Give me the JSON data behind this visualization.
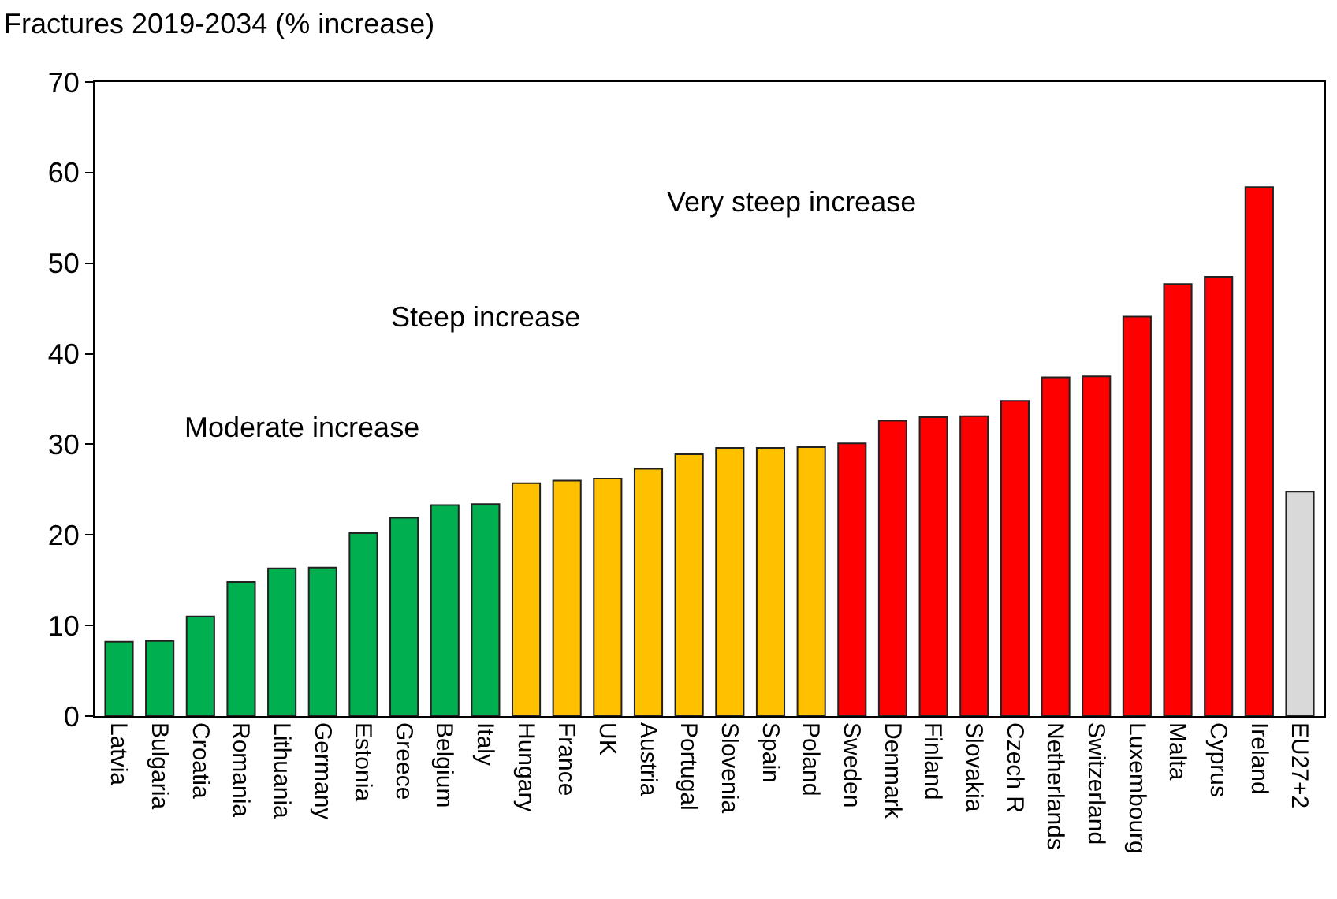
{
  "chart_data": {
    "type": "bar",
    "title": "Fractures 2019-2034 (% increase)",
    "categories": [
      "Latvia",
      "Bulgaria",
      "Croatia",
      "Romania",
      "Lithuania",
      "Germany",
      "Estonia",
      "Greece",
      "Belgium",
      "Italy",
      "Hungary",
      "France",
      "UK",
      "Austria",
      "Portugal",
      "Slovenia",
      "Spain",
      "Poland",
      "Sweden",
      "Denmark",
      "Finland",
      "Slovakia",
      "Czech R",
      "Netherlands",
      "Switzerland",
      "Luxembourg",
      "Malta",
      "Cyprus",
      "Ireland",
      "EU27+2"
    ],
    "values": [
      8.2,
      8.3,
      11,
      14.8,
      16.3,
      16.4,
      20.2,
      21.9,
      23.3,
      23.4,
      25.7,
      26.0,
      26.2,
      27.3,
      28.9,
      29.6,
      29.6,
      29.7,
      30.1,
      32.6,
      33.0,
      33.1,
      34.8,
      37.4,
      37.5,
      44.1,
      47.7,
      48.5,
      58.4,
      24.8
    ],
    "colors": [
      "#00b050",
      "#00b050",
      "#00b050",
      "#00b050",
      "#00b050",
      "#00b050",
      "#00b050",
      "#00b050",
      "#00b050",
      "#00b050",
      "#ffc000",
      "#ffc000",
      "#ffc000",
      "#ffc000",
      "#ffc000",
      "#ffc000",
      "#ffc000",
      "#ffc000",
      "#ff0000",
      "#ff0000",
      "#ff0000",
      "#ff0000",
      "#ff0000",
      "#ff0000",
      "#ff0000",
      "#ff0000",
      "#ff0000",
      "#ff0000",
      "#ff0000",
      "#d9d9d9"
    ],
    "ylim": [
      0,
      70
    ],
    "yticks": [
      0,
      10,
      20,
      30,
      40,
      50,
      60,
      70
    ],
    "annotations": [
      "Moderate increase",
      "Steep increase",
      "Very steep increase"
    ]
  }
}
